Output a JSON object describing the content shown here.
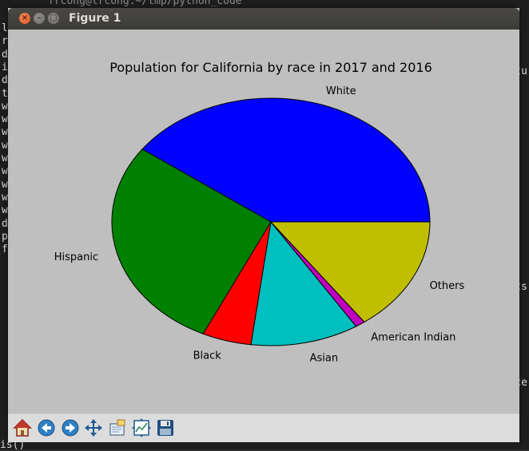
{
  "window": {
    "title": "Figure 1"
  },
  "background_terminal": {
    "top_text": "frcong@trcong:~/tmp/python_code",
    "left_chars": [
      "le",
      "ro",
      "d",
      "i",
      "d",
      "t",
      "w",
      "w",
      "w",
      "w",
      "w",
      "w",
      "w",
      "w",
      "w",
      "d",
      "p",
      "f"
    ],
    "right_chars": [
      "tu",
      "ts",
      "ce"
    ],
    "bottom_text": "is()"
  },
  "toolbar": {
    "buttons": [
      {
        "name": "home-button",
        "icon": "home-icon"
      },
      {
        "name": "back-button",
        "icon": "back-arrow-icon"
      },
      {
        "name": "forward-button",
        "icon": "forward-arrow-icon"
      },
      {
        "name": "pan-button",
        "icon": "move-icon"
      },
      {
        "name": "zoom-button",
        "icon": "zoom-rect-icon"
      },
      {
        "name": "subplots-button",
        "icon": "subplots-icon"
      },
      {
        "name": "save-button",
        "icon": "floppy-disk-icon"
      }
    ]
  },
  "chart_data": {
    "type": "pie",
    "title": "Population for California by race in 2017 and 2016",
    "categories": [
      "White",
      "Hispanic",
      "Black",
      "Asian",
      "American Indian",
      "Others"
    ],
    "values": [
      40.0,
      28.0,
      5.0,
      11.0,
      1.0,
      15.0
    ],
    "colors": [
      "#0000ff",
      "#008000",
      "#ff0000",
      "#00bfbf",
      "#bf00bf",
      "#bfbf00"
    ],
    "start_angle_deg": 0,
    "direction": "counterclockwise",
    "edge_color": "#000000"
  }
}
